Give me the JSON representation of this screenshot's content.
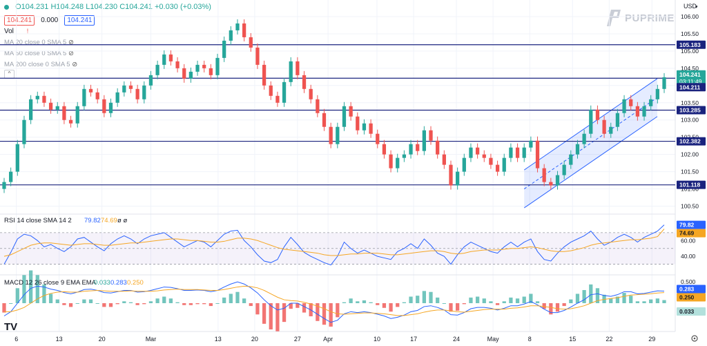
{
  "header": {
    "open": "O104.231",
    "high": "H104.248",
    "low": "L104.230",
    "close": "C104.241",
    "change": "+0.030 (+0.03%)",
    "bid": "104.241",
    "spread": "0.000",
    "ask": "104.241",
    "vol_label": "Vol",
    "ma20": "MA 20 close 0 SMA 5",
    "ma50": "MA 50 close 0 SMA 5",
    "ma200": "MA 200 close 0 SMA 5"
  },
  "currency": "USD",
  "brand": "PUPRIME",
  "colors": {
    "up": "#26a69a",
    "down": "#ef5350",
    "hline": "#1a237e",
    "channel": "#2962ff",
    "rsi": "#2962ff",
    "rsi_ma": "#f5a623",
    "macd": "#2962ff",
    "signal": "#f5a623"
  },
  "price_labels": {
    "last": "104.241",
    "countdown": "03:11:49",
    "l105183": "105.183",
    "l104211": "104.211",
    "l103285": "103.285",
    "l102382": "102.382",
    "l101118": "101.118"
  },
  "rsi_panel": {
    "title": "RSI 14 close SMA 14 2",
    "rsi": "79.82",
    "rsi_ma": "74.69",
    "extra": "ø ø",
    "axis_labels": [
      "60.00",
      "40.00"
    ]
  },
  "macd_panel": {
    "title": "MACD 12 26 close 9 EMA EMA",
    "hist": "0.033",
    "macd": "0.283",
    "signal": "0.250",
    "axis_label": "0.500"
  },
  "chart_data": {
    "type": "candlestick",
    "x_ticks": [
      "6",
      "13",
      "20",
      "Mar",
      "13",
      "20",
      "27",
      "Apr",
      "10",
      "17",
      "24",
      "May",
      "8",
      "15",
      "22",
      "29"
    ],
    "y_ticks": [
      106.0,
      105.5,
      105.0,
      104.5,
      104.0,
      103.5,
      103.0,
      102.5,
      102.0,
      101.5,
      101.0,
      100.5
    ],
    "ylim": [
      100.35,
      106.2
    ],
    "horizontal_levels": [
      105.183,
      104.211,
      103.285,
      102.382,
      101.118
    ],
    "last_price": 104.241,
    "closes": [
      101.2,
      101.5,
      102.3,
      103.0,
      103.6,
      103.7,
      103.5,
      103.3,
      103.4,
      103.0,
      102.9,
      103.4,
      103.9,
      103.8,
      103.6,
      103.2,
      103.5,
      103.8,
      104.0,
      103.9,
      103.6,
      104.0,
      104.3,
      104.6,
      104.9,
      104.7,
      104.5,
      104.2,
      104.4,
      104.6,
      104.5,
      104.3,
      104.8,
      105.3,
      105.6,
      105.8,
      105.4,
      105.1,
      104.6,
      104.0,
      103.7,
      103.5,
      104.1,
      104.7,
      104.3,
      103.9,
      103.6,
      103.2,
      102.8,
      102.3,
      102.8,
      103.4,
      103.1,
      102.7,
      102.9,
      102.6,
      102.3,
      102.0,
      101.6,
      101.9,
      102.0,
      102.3,
      102.1,
      102.7,
      102.4,
      102.0,
      101.7,
      101.1,
      101.5,
      101.9,
      102.2,
      102.0,
      101.9,
      101.7,
      101.5,
      101.9,
      102.2,
      101.9,
      102.2,
      102.4,
      101.6,
      101.2,
      101.1,
      101.4,
      101.7,
      102.0,
      102.3,
      102.6,
      103.3,
      103.0,
      102.6,
      102.8,
      103.2,
      103.6,
      103.4,
      103.1,
      103.4,
      103.6,
      103.9,
      104.24
    ],
    "rsi": {
      "levels": [
        70,
        50,
        30
      ],
      "values": [
        30,
        45,
        62,
        68,
        66,
        60,
        52,
        55,
        50,
        46,
        52,
        62,
        64,
        58,
        52,
        47,
        56,
        62,
        66,
        62,
        56,
        62,
        66,
        68,
        70,
        64,
        58,
        52,
        56,
        60,
        58,
        52,
        60,
        68,
        72,
        73,
        60,
        52,
        42,
        34,
        32,
        36,
        52,
        64,
        55,
        45,
        40,
        36,
        32,
        29,
        40,
        58,
        50,
        44,
        48,
        44,
        40,
        38,
        36,
        46,
        50,
        56,
        50,
        62,
        54,
        44,
        40,
        30,
        42,
        52,
        58,
        54,
        50,
        46,
        44,
        52,
        58,
        52,
        58,
        62,
        46,
        36,
        34,
        44,
        52,
        58,
        62,
        66,
        72,
        62,
        54,
        58,
        64,
        68,
        64,
        58,
        64,
        68,
        72,
        79.82
      ],
      "ma_values": [
        40,
        42,
        46,
        50,
        54,
        56,
        57,
        57,
        56,
        55,
        54,
        55,
        56,
        56,
        55,
        54,
        54,
        55,
        56,
        57,
        57,
        58,
        59,
        60,
        61,
        62,
        62,
        61,
        60,
        60,
        59,
        58,
        58,
        59,
        61,
        63,
        63,
        62,
        60,
        57,
        54,
        51,
        49,
        48,
        47,
        46,
        45,
        44,
        42,
        41,
        41,
        42,
        43,
        43,
        44,
        44,
        44,
        43,
        42,
        42,
        43,
        44,
        45,
        46,
        47,
        47,
        46,
        44,
        43,
        44,
        46,
        47,
        48,
        48,
        48,
        49,
        50,
        50,
        51,
        52,
        51,
        49,
        47,
        46,
        46,
        47,
        49,
        51,
        54,
        56,
        57,
        58,
        59,
        60,
        61,
        61,
        62,
        63,
        65,
        74.69
      ]
    },
    "macd": {
      "values": [
        -0.3,
        -0.2,
        0.0,
        0.2,
        0.35,
        0.4,
        0.38,
        0.33,
        0.3,
        0.25,
        0.22,
        0.26,
        0.32,
        0.33,
        0.3,
        0.25,
        0.24,
        0.27,
        0.3,
        0.3,
        0.26,
        0.27,
        0.3,
        0.34,
        0.38,
        0.37,
        0.34,
        0.3,
        0.3,
        0.31,
        0.3,
        0.27,
        0.3,
        0.38,
        0.45,
        0.5,
        0.45,
        0.36,
        0.24,
        0.08,
        -0.06,
        -0.16,
        -0.12,
        0.0,
        0.0,
        -0.08,
        -0.16,
        -0.26,
        -0.36,
        -0.45,
        -0.4,
        -0.25,
        -0.2,
        -0.22,
        -0.2,
        -0.22,
        -0.26,
        -0.3,
        -0.36,
        -0.33,
        -0.28,
        -0.2,
        -0.17,
        -0.08,
        -0.06,
        -0.1,
        -0.16,
        -0.27,
        -0.28,
        -0.22,
        -0.13,
        -0.1,
        -0.1,
        -0.12,
        -0.16,
        -0.12,
        -0.06,
        -0.06,
        -0.02,
        0.04,
        -0.04,
        -0.14,
        -0.22,
        -0.22,
        -0.17,
        -0.09,
        0.0,
        0.08,
        0.2,
        0.22,
        0.18,
        0.16,
        0.2,
        0.27,
        0.27,
        0.22,
        0.23,
        0.26,
        0.29,
        0.283
      ],
      "signal_values": [
        -0.2,
        -0.2,
        -0.16,
        -0.1,
        0.0,
        0.1,
        0.18,
        0.23,
        0.26,
        0.27,
        0.26,
        0.26,
        0.28,
        0.29,
        0.3,
        0.29,
        0.28,
        0.28,
        0.28,
        0.29,
        0.28,
        0.28,
        0.28,
        0.29,
        0.31,
        0.32,
        0.33,
        0.32,
        0.32,
        0.32,
        0.31,
        0.3,
        0.3,
        0.32,
        0.35,
        0.38,
        0.4,
        0.39,
        0.36,
        0.3,
        0.22,
        0.14,
        0.08,
        0.06,
        0.05,
        0.02,
        -0.02,
        -0.07,
        -0.13,
        -0.2,
        -0.25,
        -0.26,
        -0.25,
        -0.24,
        -0.23,
        -0.23,
        -0.24,
        -0.25,
        -0.27,
        -0.29,
        -0.29,
        -0.27,
        -0.25,
        -0.21,
        -0.18,
        -0.16,
        -0.16,
        -0.18,
        -0.2,
        -0.21,
        -0.19,
        -0.17,
        -0.15,
        -0.14,
        -0.14,
        -0.14,
        -0.12,
        -0.11,
        -0.09,
        -0.06,
        -0.06,
        -0.08,
        -0.1,
        -0.13,
        -0.14,
        -0.13,
        -0.1,
        -0.06,
        0.0,
        0.06,
        0.09,
        0.11,
        0.13,
        0.16,
        0.19,
        0.2,
        0.21,
        0.22,
        0.24,
        0.25
      ]
    }
  }
}
